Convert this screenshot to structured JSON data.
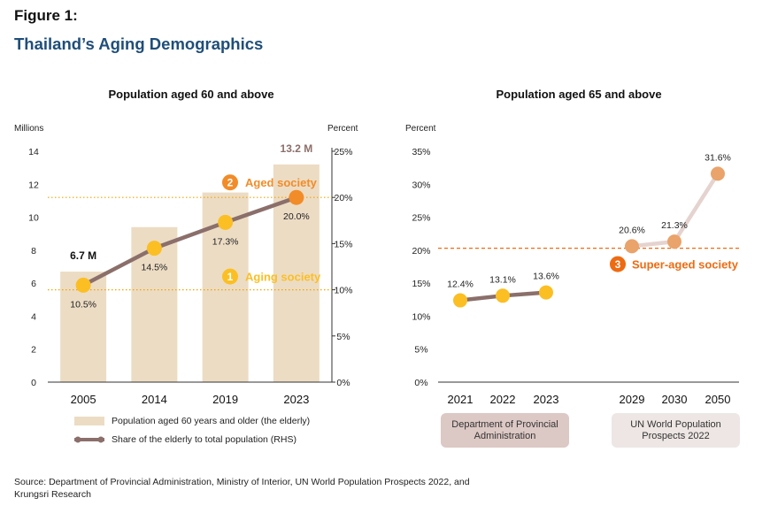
{
  "figure": {
    "label": "Figure 1:",
    "title": "Thailand’s Aging Demographics",
    "source": "Source: Department of Provincial Administration, Ministry of Interior, UN World Population Prospects 2022, and Krungsri Research"
  },
  "colors": {
    "bar": "#ecdcc4",
    "line_left": "#8b6f6a",
    "dot_yellow": "#fbbf24",
    "dot_orange": "#f28c28",
    "dot_peach": "#e9a36b",
    "line_right_later": "#e5d3cf",
    "title_blue": "#1f4e79",
    "threshold": "#f0a500",
    "super_aged": "#ee6b12",
    "box_dopa": "#dcc8c4",
    "box_un": "#ede6e4"
  },
  "chart_data": [
    {
      "type": "bar",
      "title": "Population aged 60 and above",
      "ylabel_left": "Millions",
      "ylabel_right": "Percent",
      "ylim_left": [
        0,
        14
      ],
      "yticks_left": [
        "0",
        "2",
        "4",
        "6",
        "8",
        "10",
        "12",
        "14"
      ],
      "ylim_right": [
        0,
        25
      ],
      "yticks_right": [
        "0%",
        "5%",
        "10%",
        "15%",
        "20%",
        "25%"
      ],
      "categories": [
        "2005",
        "2014",
        "2019",
        "2023"
      ],
      "series": [
        {
          "name": "Population aged 60 years and older (the elderly)",
          "type": "bar",
          "axis": "left",
          "values": [
            6.7,
            9.4,
            11.5,
            13.2
          ]
        },
        {
          "name": "Share of the elderly to total population (RHS)",
          "type": "line",
          "axis": "right",
          "values": [
            10.5,
            14.5,
            17.3,
            20.0
          ],
          "labels": [
            "10.5%",
            "14.5%",
            "17.3%",
            "20.0%"
          ]
        }
      ],
      "bar_value_labels": [
        {
          "index": 0,
          "text": "6.7 M"
        },
        {
          "index": 3,
          "text": "13.2 M"
        }
      ],
      "thresholds": [
        {
          "value": 10,
          "number": "1",
          "label": "Aging society"
        },
        {
          "value": 20,
          "number": "2",
          "label": "Aged society"
        }
      ],
      "legend": [
        {
          "label": "Population aged 60 years and older (the elderly)"
        },
        {
          "label": "Share of the elderly to total population (RHS)"
        }
      ],
      "legend_position": "bottom"
    },
    {
      "type": "line",
      "title": "Population aged 65 and above",
      "ylabel": "Percent",
      "ylim": [
        0,
        35
      ],
      "yticks": [
        "0%",
        "5%",
        "10%",
        "15%",
        "20%",
        "25%",
        "30%",
        "35%"
      ],
      "groups": [
        {
          "label": "Department of Provincial Administration",
          "x": [
            "2021",
            "2022",
            "2023"
          ],
          "values": [
            12.4,
            13.1,
            13.6
          ],
          "labels": [
            "12.4%",
            "13.1%",
            "13.6%"
          ]
        },
        {
          "label": "UN World Population Prospects 2022",
          "x": [
            "2029",
            "2030",
            "2050"
          ],
          "values": [
            20.6,
            21.3,
            31.6
          ],
          "labels": [
            "20.6%",
            "21.3%",
            "31.6%"
          ]
        }
      ],
      "thresholds": [
        {
          "value": 20.3,
          "number": "3",
          "label": "Super-aged society"
        }
      ]
    }
  ]
}
